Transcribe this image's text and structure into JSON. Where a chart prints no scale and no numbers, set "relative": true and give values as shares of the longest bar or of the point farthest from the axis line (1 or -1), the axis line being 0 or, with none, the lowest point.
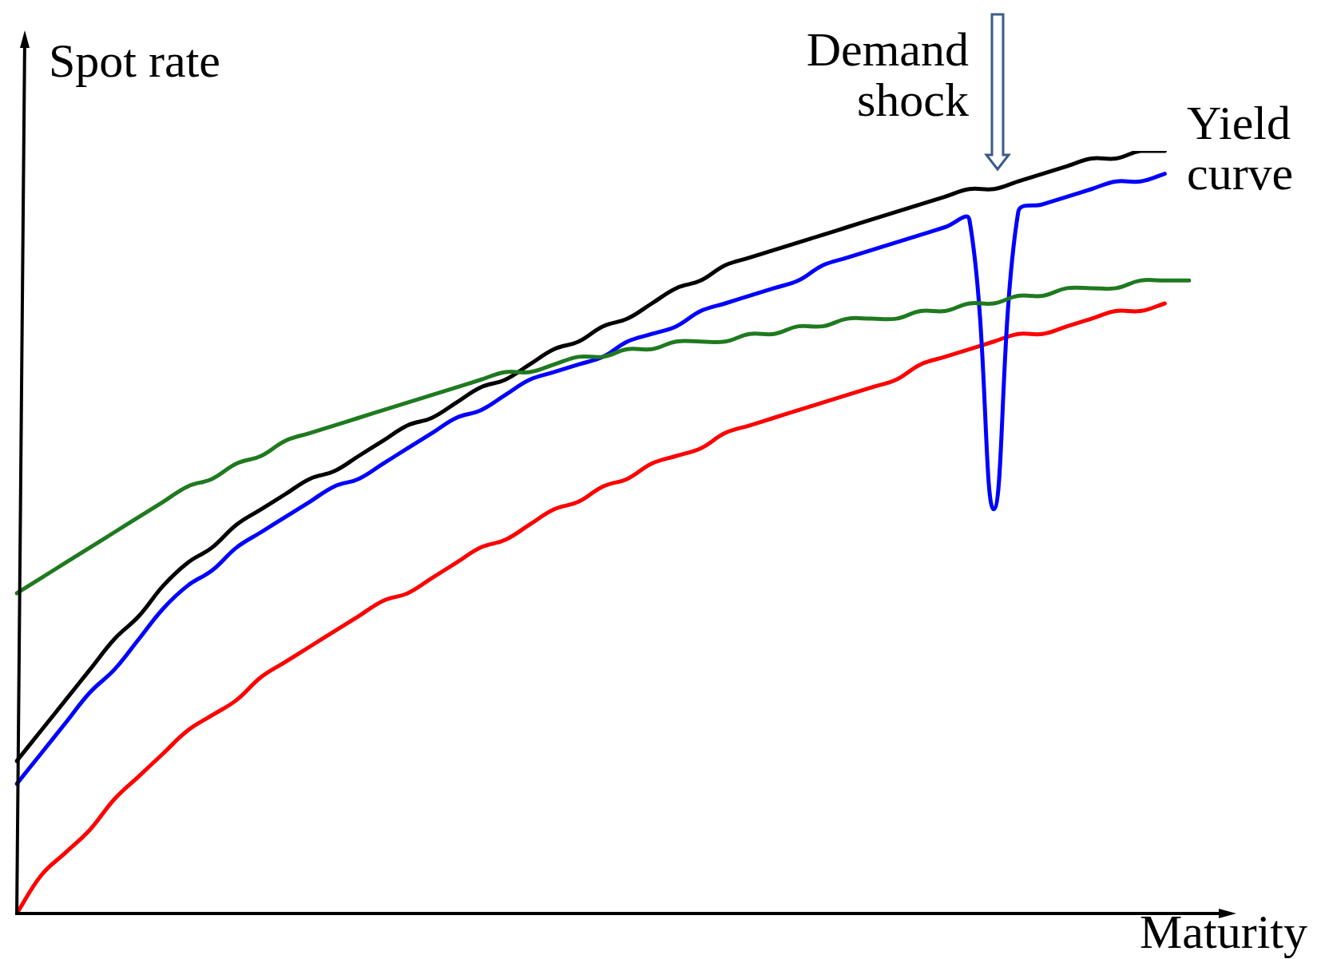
{
  "chart_data": {
    "type": "line",
    "relative": true,
    "ylabel": "Spot rate",
    "xlabel": "Maturity",
    "annotations": [
      "Demand shock",
      "Yield curve"
    ],
    "categories": [
      null,
      null,
      null,
      null,
      null,
      null,
      null,
      null,
      null,
      null,
      null,
      null,
      null,
      null,
      null,
      null,
      null,
      null,
      null,
      null,
      null,
      null,
      null,
      null,
      null,
      null,
      null,
      null,
      null,
      null,
      null,
      null,
      null,
      null,
      null,
      null,
      null,
      null,
      null,
      null,
      null,
      null,
      null,
      null,
      null,
      null,
      null,
      null,
      null
    ],
    "legend": false,
    "marker": "none",
    "line_style": "solid",
    "series": [
      {
        "color": "#1f7a1f",
        "values": [
          0.42,
          0.44,
          0.46,
          0.48,
          0.5,
          0.52,
          0.54,
          0.56,
          0.57,
          0.59,
          0.6,
          0.62,
          0.63,
          0.64,
          0.65,
          0.66,
          0.67,
          0.68,
          0.69,
          0.7,
          0.71,
          0.71,
          0.72,
          0.73,
          0.73,
          0.74,
          0.74,
          0.75,
          0.75,
          0.75,
          0.76,
          0.76,
          0.77,
          0.77,
          0.78,
          0.78,
          0.78,
          0.79,
          0.79,
          0.8,
          0.8,
          0.81,
          0.81,
          0.82,
          0.82,
          0.82,
          0.83,
          0.83,
          0.83
        ]
      },
      {
        "color": "#000000",
        "values": [
          0.2,
          0.24,
          0.28,
          0.32,
          0.36,
          0.39,
          0.43,
          0.46,
          0.48,
          0.51,
          0.53,
          0.55,
          0.57,
          0.58,
          0.6,
          0.62,
          0.64,
          0.65,
          0.67,
          0.69,
          0.7,
          0.72,
          0.74,
          0.75,
          0.77,
          0.78,
          0.8,
          0.82,
          0.83,
          0.85,
          0.86,
          0.87,
          0.88,
          0.89,
          0.9,
          0.91,
          0.92,
          0.93,
          0.94,
          0.95,
          0.95,
          0.96,
          0.97,
          0.98,
          0.99,
          0.99,
          1.0,
          1.0,
          null
        ]
      },
      {
        "color": "#0000ff",
        "values": [
          0.17,
          0.21,
          0.25,
          0.29,
          0.32,
          0.36,
          0.4,
          0.43,
          0.45,
          0.48,
          0.5,
          0.52,
          0.54,
          0.56,
          0.57,
          0.59,
          0.61,
          0.63,
          0.65,
          0.66,
          0.68,
          0.7,
          0.71,
          0.72,
          0.73,
          0.75,
          0.76,
          0.77,
          0.79,
          0.8,
          0.81,
          0.82,
          0.83,
          0.85,
          0.86,
          0.87,
          0.88,
          0.89,
          0.9,
          0.91,
          0.53,
          0.92,
          0.93,
          0.94,
          0.95,
          0.96,
          0.96,
          0.97,
          null
        ]
      },
      {
        "color": "#ff0000",
        "values": [
          0.0,
          0.05,
          0.08,
          0.11,
          0.15,
          0.18,
          0.21,
          0.24,
          0.26,
          0.28,
          0.31,
          0.33,
          0.35,
          0.37,
          0.39,
          0.41,
          0.42,
          0.44,
          0.46,
          0.48,
          0.49,
          0.51,
          0.53,
          0.54,
          0.56,
          0.57,
          0.59,
          0.6,
          0.61,
          0.63,
          0.64,
          0.65,
          0.66,
          0.67,
          0.68,
          0.69,
          0.7,
          0.72,
          0.73,
          0.74,
          0.75,
          0.76,
          0.76,
          0.77,
          0.78,
          0.79,
          0.79,
          0.8,
          null
        ]
      }
    ]
  }
}
